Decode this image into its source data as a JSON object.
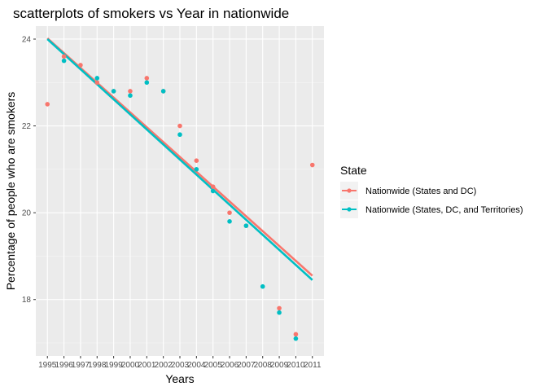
{
  "chart_data": {
    "type": "scatter",
    "title": "scatterplots of smokers vs Year in nationwide",
    "xlabel": "Years",
    "ylabel": "Percentage of people who are smokers",
    "xlim": [
      1994.3,
      2011.7
    ],
    "ylim": [
      16.7,
      24.3
    ],
    "x_ticks": [
      1995,
      1996,
      1997,
      1998,
      1999,
      2000,
      2001,
      2002,
      2003,
      2004,
      2005,
      2006,
      2007,
      2008,
      2009,
      2010,
      2011
    ],
    "y_ticks": [
      18,
      20,
      22,
      24
    ],
    "grid": true,
    "legend": {
      "title": "State",
      "placement": "right"
    },
    "series": [
      {
        "name": "Nationwide (States and DC)",
        "color": "#F8766D",
        "x": [
          1995,
          1996,
          1997,
          1998,
          1999,
          2000,
          2001,
          2002,
          2003,
          2004,
          2005,
          2006,
          2007,
          2009,
          2010,
          2011
        ],
        "y": [
          22.5,
          23.6,
          23.4,
          23.0,
          22.8,
          22.8,
          23.1,
          22.8,
          22.0,
          21.2,
          20.6,
          20.0,
          19.7,
          17.8,
          17.2,
          21.1
        ],
        "fit": {
          "x": [
            1995,
            2011
          ],
          "y": [
            24.02,
            18.55
          ]
        }
      },
      {
        "name": "Nationwide (States, DC, and Territories)",
        "color": "#00BFC4",
        "x": [
          1996,
          1998,
          1999,
          2000,
          2001,
          2002,
          2003,
          2004,
          2005,
          2006,
          2007,
          2008,
          2009,
          2010
        ],
        "y": [
          23.5,
          23.1,
          22.8,
          22.7,
          23.0,
          22.8,
          21.8,
          21.0,
          20.5,
          19.8,
          19.7,
          18.3,
          17.7,
          17.1
        ],
        "fit": {
          "x": [
            1995,
            2011
          ],
          "y": [
            24.0,
            18.45
          ]
        }
      }
    ]
  }
}
